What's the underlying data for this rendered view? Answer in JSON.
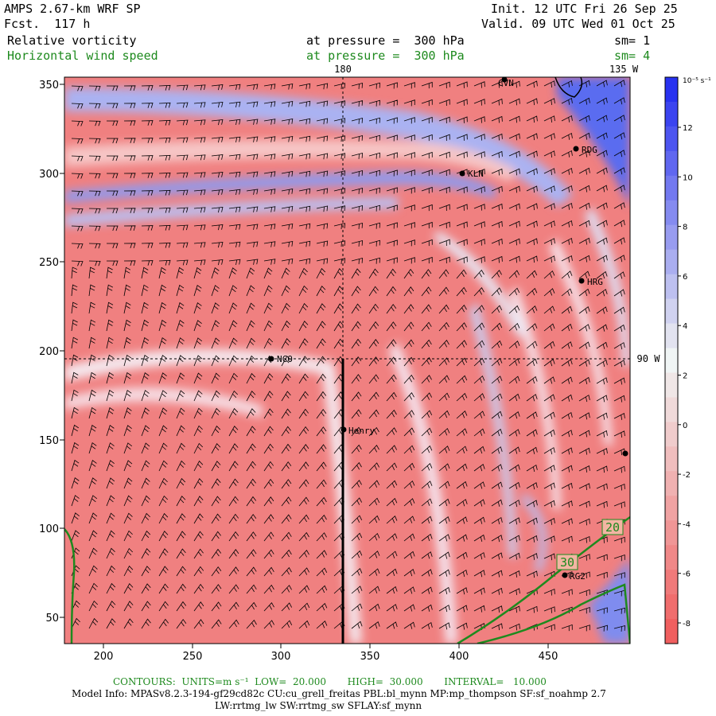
{
  "header": {
    "model": "AMPS 2.67-km WRF SP",
    "fcst": "Fcst.  117 h",
    "init": "Init. 12 UTC Fri 26 Sep 25",
    "valid": "Valid. 09 UTC Wed 01 Oct 25",
    "field1_name": "Relative vorticity",
    "field1_level": "at pressure =  300 hPa",
    "field1_sm": "sm= 1",
    "field2_name": "Horizontal wind speed",
    "field2_level": "at pressure =  300 hPa",
    "field2_sm": "sm= 4"
  },
  "map": {
    "x_ticks": [
      "200",
      "250",
      "300",
      "350",
      "400",
      "450"
    ],
    "y_ticks": [
      "350",
      "300",
      "250",
      "200",
      "150",
      "100",
      "50"
    ],
    "lon_labels": {
      "top_180": "180",
      "top_135w": "135 W",
      "right_90w": "90 W"
    },
    "stations": [
      {
        "name": "CVN"
      },
      {
        "name": "RDG"
      },
      {
        "name": "KLN"
      },
      {
        "name": "HRG"
      },
      {
        "name": "NCO"
      },
      {
        "name": "Henry"
      },
      {
        "name": "RG2"
      },
      {
        "name": ""
      }
    ],
    "contour_labels": [
      "20",
      "30"
    ],
    "colors": {
      "positive_vorticity": "#3a4ef0",
      "negative_vorticity": "#ef5a5a",
      "wind_contour": "#1e8a1e"
    }
  },
  "colorbar": {
    "unit": "10⁻⁵ s⁻¹",
    "ticks": [
      "12",
      "10",
      "8",
      "6",
      "4",
      "2",
      "0",
      "-2",
      "-4",
      "-6",
      "-8"
    ]
  },
  "footer": {
    "contours_line": "CONTOURS:  UNITS=m s⁻¹  LOW=  20.000       HIGH=  30.000       INTERVAL=   10.000",
    "model_info_1": "Model Info: MPASv8.2.3-194-gf29cd82c CU:cu_grell_freitas PBL:bl_mynn MP:mp_thompson SF:sf_noahmp 2.7",
    "model_info_2": "LW:rrtmg_lw SW:rrtmg_sw SFLAY:sf_mynn"
  }
}
